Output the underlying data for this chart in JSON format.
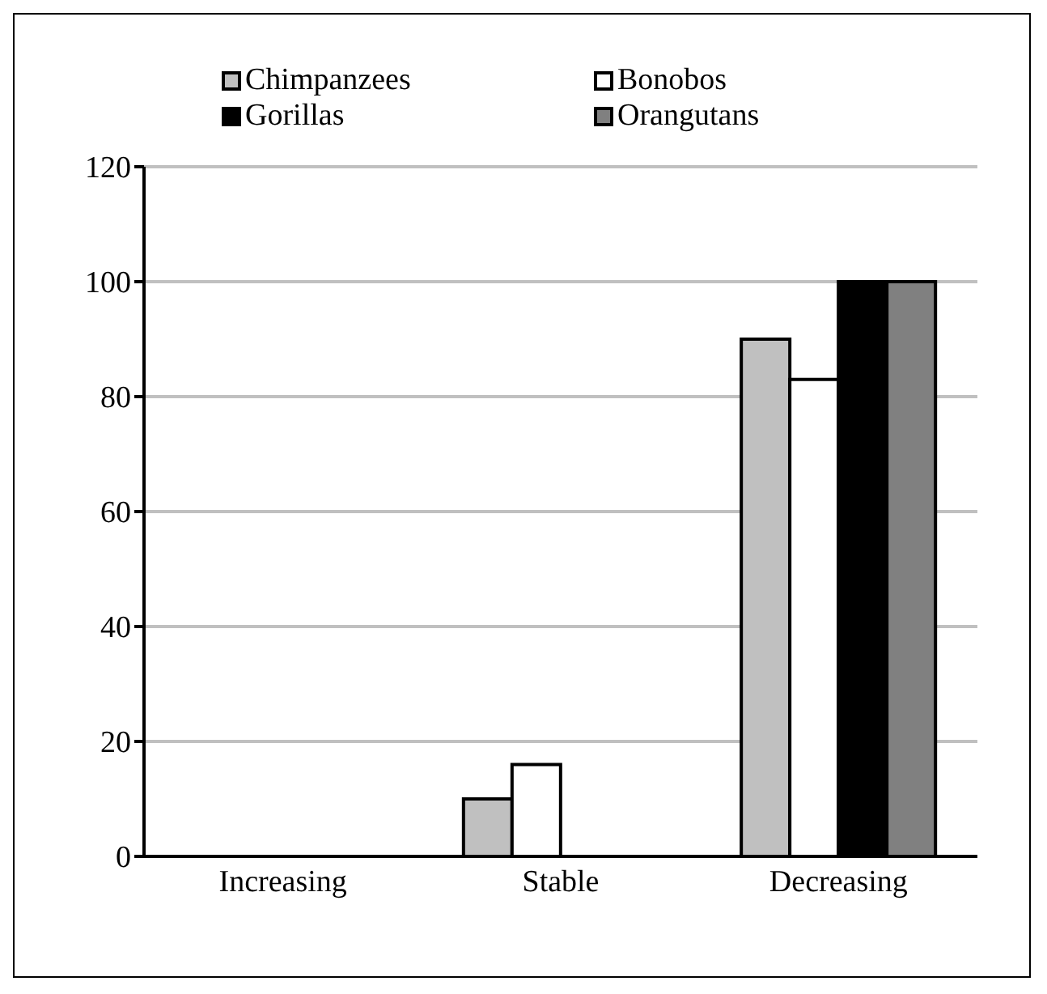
{
  "chart_data": {
    "type": "bar",
    "categories": [
      "Increasing",
      "Stable",
      "Decreasing"
    ],
    "series": [
      {
        "name": "Chimpanzees",
        "color": "#c0c0c0",
        "values": [
          0,
          10,
          90
        ]
      },
      {
        "name": "Bonobos",
        "color": "#ffffff",
        "values": [
          0,
          16,
          83
        ]
      },
      {
        "name": "Gorillas",
        "color": "#000000",
        "values": [
          0,
          0,
          100
        ]
      },
      {
        "name": "Orangutans",
        "color": "#808080",
        "values": [
          0,
          0,
          100
        ]
      }
    ],
    "ylim": [
      0,
      120
    ],
    "yticks": [
      0,
      20,
      40,
      60,
      80,
      100,
      120
    ],
    "grid": "y",
    "legend": "top"
  }
}
